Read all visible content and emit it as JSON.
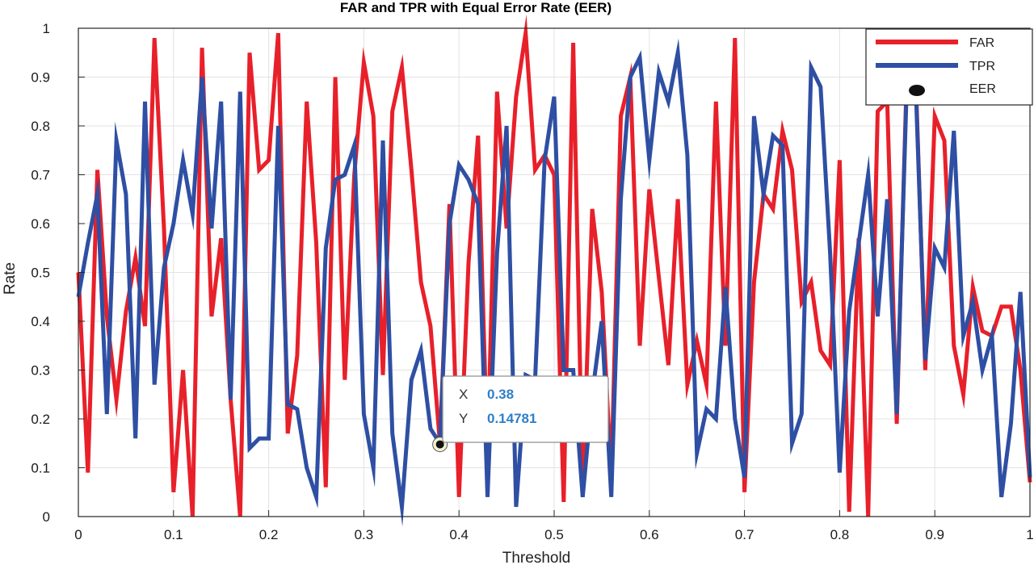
{
  "chart_data": {
    "type": "line",
    "title": "FAR and TPR with Equal Error Rate (EER)",
    "xlabel": "Threshold",
    "ylabel": "Rate",
    "xlim": [
      0,
      1
    ],
    "ylim": [
      0,
      1
    ],
    "grid": true,
    "legend_position": "top-right",
    "x_ticks": [
      0,
      0.1,
      0.2,
      0.3,
      0.4,
      0.5,
      0.6,
      0.7,
      0.8,
      0.9,
      1
    ],
    "x_tick_labels": [
      "0",
      "0.1",
      "0.2",
      "0.3",
      "0.4",
      "0.5",
      "0.6",
      "0.7",
      "0.8",
      "0.9",
      "1"
    ],
    "y_ticks": [
      0,
      0.1,
      0.2,
      0.3,
      0.4,
      0.5,
      0.6,
      0.7,
      0.8,
      0.9,
      1
    ],
    "y_tick_labels": [
      "0",
      "0.1",
      "0.2",
      "0.3",
      "0.4",
      "0.5",
      "0.6",
      "0.7",
      "0.8",
      "0.9",
      "1"
    ],
    "series": [
      {
        "name": "FAR",
        "color": "#e8202a",
        "x": [
          0,
          0.01,
          0.02,
          0.03,
          0.04,
          0.05,
          0.06,
          0.07,
          0.08,
          0.09,
          0.1,
          0.11,
          0.12,
          0.13,
          0.14,
          0.15,
          0.16,
          0.17,
          0.18,
          0.19,
          0.2,
          0.21,
          0.22,
          0.23,
          0.24,
          0.25,
          0.26,
          0.27,
          0.28,
          0.29,
          0.3,
          0.31,
          0.32,
          0.33,
          0.34,
          0.35,
          0.36,
          0.37,
          0.38,
          0.39,
          0.4,
          0.41,
          0.42,
          0.43,
          0.44,
          0.45,
          0.46,
          0.47,
          0.48,
          0.49,
          0.5,
          0.51,
          0.52,
          0.53,
          0.54,
          0.55,
          0.56,
          0.57,
          0.58,
          0.59,
          0.6,
          0.61,
          0.62,
          0.63,
          0.64,
          0.65,
          0.66,
          0.67,
          0.68,
          0.69,
          0.7,
          0.71,
          0.72,
          0.73,
          0.74,
          0.75,
          0.76,
          0.77,
          0.78,
          0.79,
          0.8,
          0.81,
          0.82,
          0.83,
          0.84,
          0.85,
          0.86,
          0.87,
          0.88,
          0.89,
          0.9,
          0.91,
          0.92,
          0.93,
          0.94,
          0.95,
          0.96,
          0.97,
          0.98,
          0.99,
          1
        ],
        "y": [
          0.5,
          0.09,
          0.71,
          0.41,
          0.24,
          0.42,
          0.53,
          0.39,
          0.98,
          0.59,
          0.05,
          0.3,
          0.0,
          0.96,
          0.41,
          0.57,
          0.24,
          0.0,
          0.95,
          0.71,
          0.73,
          0.99,
          0.17,
          0.33,
          0.85,
          0.56,
          0.06,
          0.9,
          0.28,
          0.7,
          0.93,
          0.82,
          0.29,
          0.83,
          0.92,
          0.71,
          0.48,
          0.39,
          0.15,
          0.64,
          0.04,
          0.52,
          0.78,
          0.12,
          0.87,
          0.59,
          0.86,
          0.99,
          0.71,
          0.74,
          0.7,
          0.03,
          0.97,
          0.05,
          0.63,
          0.46,
          0.08,
          0.82,
          0.9,
          0.35,
          0.67,
          0.49,
          0.31,
          0.65,
          0.27,
          0.36,
          0.27,
          0.85,
          0.35,
          0.98,
          0.05,
          0.48,
          0.66,
          0.63,
          0.79,
          0.71,
          0.44,
          0.48,
          0.34,
          0.31,
          0.73,
          0.01,
          0.57,
          0.0,
          0.83,
          0.85,
          0.19,
          0.87,
          0.9,
          0.3,
          0.82,
          0.77,
          0.35,
          0.25,
          0.47,
          0.38,
          0.37,
          0.43,
          0.43,
          0.3,
          0.07
        ]
      },
      {
        "name": "TPR",
        "color": "#2e4fa3",
        "x": [
          0,
          0.01,
          0.02,
          0.03,
          0.04,
          0.05,
          0.06,
          0.07,
          0.08,
          0.09,
          0.1,
          0.11,
          0.12,
          0.13,
          0.14,
          0.15,
          0.16,
          0.17,
          0.18,
          0.19,
          0.2,
          0.21,
          0.22,
          0.23,
          0.24,
          0.25,
          0.26,
          0.27,
          0.28,
          0.29,
          0.3,
          0.31,
          0.32,
          0.33,
          0.34,
          0.35,
          0.36,
          0.37,
          0.38,
          0.39,
          0.4,
          0.41,
          0.42,
          0.43,
          0.44,
          0.45,
          0.46,
          0.47,
          0.48,
          0.49,
          0.5,
          0.51,
          0.52,
          0.53,
          0.54,
          0.55,
          0.56,
          0.57,
          0.58,
          0.59,
          0.6,
          0.61,
          0.62,
          0.63,
          0.64,
          0.65,
          0.66,
          0.67,
          0.68,
          0.69,
          0.7,
          0.71,
          0.72,
          0.73,
          0.74,
          0.75,
          0.76,
          0.77,
          0.78,
          0.79,
          0.8,
          0.81,
          0.82,
          0.83,
          0.84,
          0.85,
          0.86,
          0.87,
          0.88,
          0.89,
          0.9,
          0.91,
          0.92,
          0.93,
          0.94,
          0.95,
          0.96,
          0.97,
          0.98,
          0.99,
          1
        ],
        "y": [
          0.45,
          0.56,
          0.66,
          0.21,
          0.77,
          0.66,
          0.16,
          0.85,
          0.27,
          0.51,
          0.6,
          0.73,
          0.62,
          0.9,
          0.59,
          0.85,
          0.24,
          0.87,
          0.14,
          0.16,
          0.16,
          0.8,
          0.23,
          0.22,
          0.1,
          0.04,
          0.55,
          0.69,
          0.7,
          0.76,
          0.21,
          0.1,
          0.77,
          0.17,
          0.02,
          0.28,
          0.34,
          0.18,
          0.15,
          0.6,
          0.72,
          0.69,
          0.64,
          0.04,
          0.54,
          0.8,
          0.02,
          0.29,
          0.28,
          0.73,
          0.86,
          0.3,
          0.3,
          0.04,
          0.25,
          0.4,
          0.04,
          0.65,
          0.9,
          0.94,
          0.73,
          0.91,
          0.85,
          0.95,
          0.74,
          0.13,
          0.22,
          0.2,
          0.47,
          0.2,
          0.08,
          0.82,
          0.66,
          0.78,
          0.76,
          0.15,
          0.21,
          0.92,
          0.88,
          0.54,
          0.09,
          0.42,
          0.56,
          0.7,
          0.41,
          0.65,
          0.21,
          0.85,
          0.88,
          0.32,
          0.55,
          0.51,
          0.79,
          0.37,
          0.44,
          0.3,
          0.37,
          0.04,
          0.19,
          0.46,
          0.08
        ]
      }
    ],
    "eer_marker": {
      "name": "EER",
      "x": 0.38,
      "y": 0.14781,
      "color": "#111111"
    },
    "datatip": {
      "x_key": "X",
      "y_key": "Y",
      "x_value": "0.38",
      "y_value": "0.14781"
    },
    "legend": [
      {
        "label": "FAR",
        "kind": "line",
        "color": "#e8202a"
      },
      {
        "label": "TPR",
        "kind": "line",
        "color": "#2e4fa3"
      },
      {
        "label": "EER",
        "kind": "marker",
        "color": "#111111"
      }
    ]
  }
}
